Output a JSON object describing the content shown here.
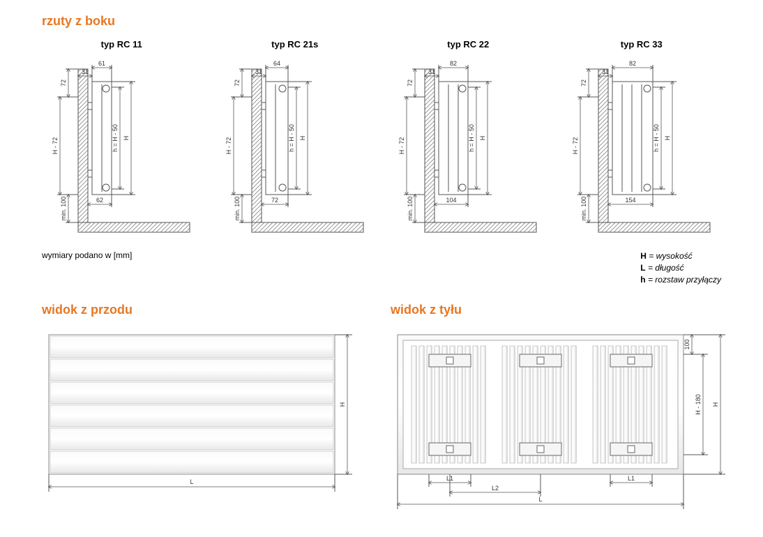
{
  "sections": {
    "side_title": "rzuty z boku",
    "front_title": "widok z przodu",
    "back_title": "widok z tyłu"
  },
  "types": [
    {
      "label": "typ RC 11",
      "top_dim": "61",
      "top_left_dim": "31",
      "left_dim": "72",
      "bottom_dim": "62",
      "rad_width": 28
    },
    {
      "label": "typ RC 21s",
      "top_dim": "64",
      "top_left_dim": "31",
      "left_dim": "72",
      "bottom_dim": "72",
      "rad_width": 32
    },
    {
      "label": "typ RC 22",
      "top_dim": "82",
      "top_left_dim": "31",
      "left_dim": "72",
      "bottom_dim": "104",
      "rad_width": 42
    },
    {
      "label": "typ RC 33",
      "top_dim": "82",
      "top_left_dim": "31",
      "left_dim": "72",
      "bottom_dim": "154",
      "rad_width": 58
    }
  ],
  "side_common": {
    "h_minus_72": "H - 72",
    "min_100": "min. 100",
    "h_equals": "h = H - 50",
    "H": "H"
  },
  "note": "wymiary podano w [mm]",
  "legend": {
    "H": "H",
    "H_desc": "= wysokość",
    "L": "L",
    "L_desc": "= długość",
    "h": "h",
    "h_desc": "= rozstaw przyłączy"
  },
  "front": {
    "L": "L",
    "H": "H"
  },
  "back": {
    "L": "L",
    "L1": "L1",
    "L2": "L2",
    "H": "H",
    "H_minus_180": "H - 180",
    "top_100": "100"
  },
  "colors": {
    "accent": "#e87722",
    "line": "#555555",
    "bg": "#ffffff"
  }
}
